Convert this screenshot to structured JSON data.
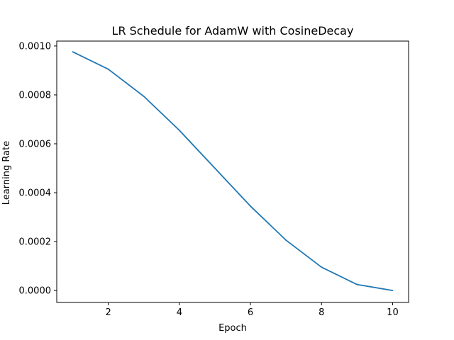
{
  "chart_data": {
    "type": "line",
    "title": "LR Schedule for AdamW with CosineDecay",
    "xlabel": "Epoch",
    "ylabel": "Learning Rate",
    "xlim": [
      0.55,
      10.45
    ],
    "ylim": [
      -4.88e-05,
      0.00102
    ],
    "grid": false,
    "x": [
      1,
      2,
      3,
      4,
      5,
      6,
      7,
      8,
      9,
      10
    ],
    "series": [
      {
        "values": [
          0.000976,
          0.000905,
          0.000794,
          0.000655,
          0.0005,
          0.000345,
          0.000206,
          9.55e-05,
          2.45e-05,
          0.0
        ]
      }
    ],
    "xticks": [
      2,
      4,
      6,
      8,
      10
    ],
    "xtick_labels": [
      "2",
      "4",
      "6",
      "8",
      "10"
    ],
    "yticks": [
      0.0,
      0.0002,
      0.0004,
      0.0006,
      0.0008,
      0.001
    ],
    "ytick_labels": [
      "0.0000",
      "0.0002",
      "0.0004",
      "0.0006",
      "0.0008",
      "0.0010"
    ],
    "line_color": "#1f77b4"
  }
}
